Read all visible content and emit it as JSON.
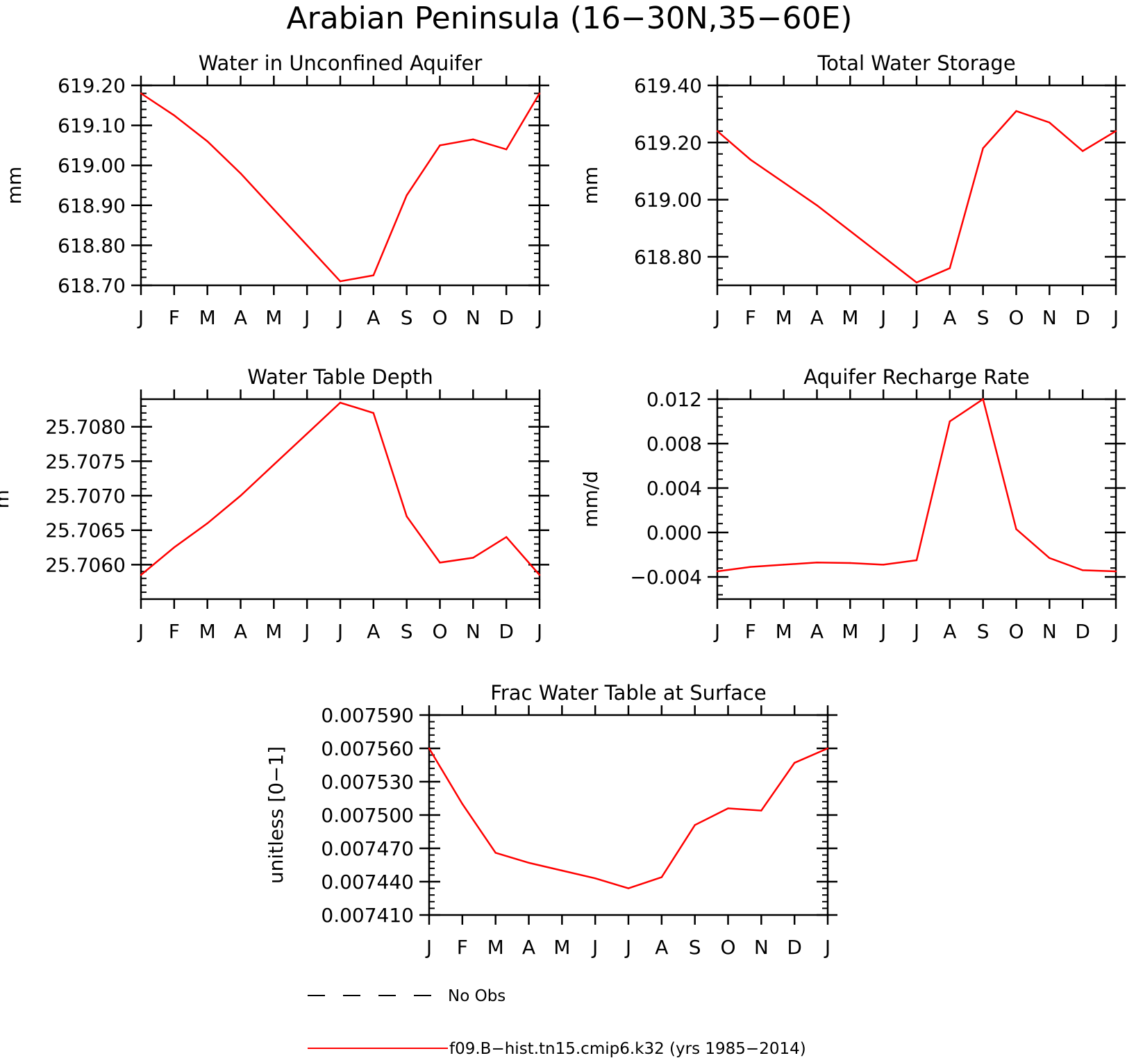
{
  "figure_title": "Arabian Peninsula (16−30N,35−60E)",
  "colors": {
    "model_line": "#ff0000",
    "axes": "#000000",
    "obs_line": "#000000"
  },
  "legend": {
    "obs_label": "No Obs",
    "model_label": "f09.B−hist.tn15.cmip6.k32 (yrs 1985−2014)"
  },
  "chart_data": [
    {
      "type": "line",
      "title": "Water in Unconfined Aquifer",
      "xlabel": "",
      "ylabel": "mm",
      "categories": [
        "J",
        "F",
        "M",
        "A",
        "M",
        "J",
        "J",
        "A",
        "S",
        "O",
        "N",
        "D",
        "J"
      ],
      "ylim": [
        618.7,
        619.2
      ],
      "yticks": [
        "619.20",
        "619.10",
        "619.00",
        "618.90",
        "618.80",
        "618.70"
      ],
      "series": [
        {
          "values": [
            619.18,
            619.125,
            619.06,
            618.98,
            618.89,
            618.8,
            618.71,
            618.725,
            618.925,
            619.05,
            619.065,
            619.04,
            619.18
          ]
        }
      ]
    },
    {
      "type": "line",
      "title": "Total Water Storage",
      "xlabel": "",
      "ylabel": "mm",
      "categories": [
        "J",
        "F",
        "M",
        "A",
        "M",
        "J",
        "J",
        "A",
        "S",
        "O",
        "N",
        "D",
        "J"
      ],
      "ylim": [
        618.7,
        619.4
      ],
      "yticks": [
        "619.40",
        "619.20",
        "619.00",
        "618.80"
      ],
      "series": [
        {
          "values": [
            619.24,
            619.14,
            619.06,
            618.98,
            618.89,
            618.8,
            618.71,
            618.76,
            619.18,
            619.31,
            619.27,
            619.17,
            619.24
          ]
        }
      ]
    },
    {
      "type": "line",
      "title": "Water Table Depth",
      "xlabel": "",
      "ylabel": "m",
      "categories": [
        "J",
        "F",
        "M",
        "A",
        "M",
        "J",
        "J",
        "A",
        "S",
        "O",
        "N",
        "D",
        "J"
      ],
      "ylim": [
        25.7055,
        25.7084
      ],
      "yticks": [
        "25.7080",
        "25.7075",
        "25.7070",
        "25.7065",
        "25.7060"
      ],
      "series": [
        {
          "values": [
            25.70585,
            25.70625,
            25.7066,
            25.707,
            25.70745,
            25.7079,
            25.70835,
            25.7082,
            25.7067,
            25.70603,
            25.7061,
            25.7064,
            25.70585
          ]
        }
      ]
    },
    {
      "type": "line",
      "title": "Aquifer Recharge Rate",
      "xlabel": "",
      "ylabel": "mm/d",
      "categories": [
        "J",
        "F",
        "M",
        "A",
        "M",
        "J",
        "J",
        "A",
        "S",
        "O",
        "N",
        "D",
        "J"
      ],
      "ylim": [
        -0.006,
        0.012
      ],
      "yticks": [
        "0.012",
        "0.008",
        "0.004",
        "0.000",
        "−0.004"
      ],
      "series": [
        {
          "values": [
            -0.0035,
            -0.0031,
            -0.0029,
            -0.0027,
            -0.00275,
            -0.0029,
            -0.0025,
            0.01,
            0.012,
            0.0003,
            -0.0023,
            -0.0034,
            -0.0035
          ]
        }
      ]
    },
    {
      "type": "line",
      "title": "Frac Water Table at Surface",
      "xlabel": "",
      "ylabel": "unitless [0−1]",
      "categories": [
        "J",
        "F",
        "M",
        "A",
        "M",
        "J",
        "J",
        "A",
        "S",
        "O",
        "N",
        "D",
        "J"
      ],
      "ylim": [
        0.00741,
        0.00759
      ],
      "yticks": [
        "0.007590",
        "0.007560",
        "0.007530",
        "0.007500",
        "0.007470",
        "0.007440",
        "0.007410"
      ],
      "series": [
        {
          "values": [
            0.00756,
            0.00751,
            0.007466,
            0.007457,
            0.00745,
            0.007443,
            0.007434,
            0.007444,
            0.007491,
            0.007506,
            0.007504,
            0.007547,
            0.00756
          ]
        }
      ]
    }
  ]
}
